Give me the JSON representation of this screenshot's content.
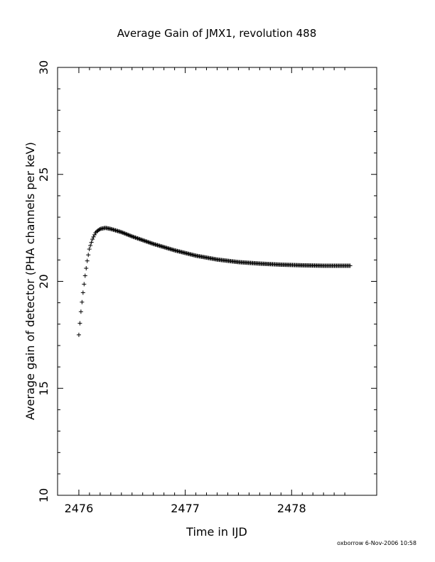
{
  "chart_data": {
    "type": "scatter",
    "title": "Average Gain of JMX1, revolution 488",
    "xlabel": "Time in IJD",
    "ylabel": "Average gain of detector (PHA channels per keV)",
    "xlim": [
      2475.8,
      2478.8
    ],
    "ylim": [
      10,
      30
    ],
    "x_ticks": [
      2476,
      2477,
      2478
    ],
    "x_tick_labels": [
      "2476",
      "2477",
      "2478"
    ],
    "y_ticks": [
      10,
      15,
      20,
      25,
      30
    ],
    "y_tick_labels": [
      "10",
      "15",
      "20",
      "25",
      "30"
    ],
    "marker": "plus",
    "grid": false,
    "legend": "none",
    "series": [
      {
        "x": [
          2476.0,
          2476.02,
          2476.04,
          2476.06,
          2476.08,
          2476.1,
          2476.13,
          2476.16,
          2476.2,
          2476.25,
          2476.3,
          2476.4,
          2476.5,
          2476.7,
          2476.9,
          2477.1,
          2477.3,
          2477.5,
          2477.7,
          2477.9,
          2478.1,
          2478.3,
          2478.55
        ],
        "y": [
          17.5,
          18.6,
          19.5,
          20.3,
          21.0,
          21.55,
          22.0,
          22.3,
          22.45,
          22.5,
          22.45,
          22.3,
          22.1,
          21.75,
          21.45,
          21.2,
          21.02,
          20.9,
          20.83,
          20.78,
          20.75,
          20.73,
          20.73
        ]
      }
    ]
  },
  "footer": {
    "text": "oxborrow   6-Nov-2006 10:58"
  }
}
